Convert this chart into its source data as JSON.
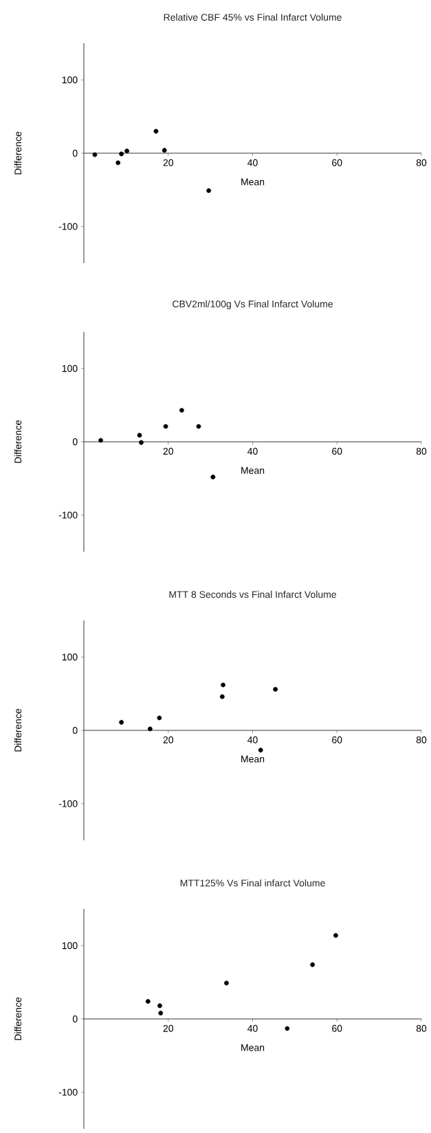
{
  "chart_data": [
    {
      "type": "scatter",
      "title": "Relative CBF 45% vs Final Infarct Volume",
      "xlabel": "Mean",
      "ylabel": "Difference",
      "color": "#000000",
      "marker": "circle",
      "xlim": [
        0,
        80
      ],
      "ylim": [
        -150,
        150
      ],
      "xticks": [
        20,
        40,
        60,
        80
      ],
      "yticks": [
        -100,
        0,
        100
      ],
      "x": [
        2.6,
        8.1,
        8.9,
        10.2,
        17.1,
        19.1,
        29.6
      ],
      "values": [
        -2,
        -13,
        -1,
        3,
        30,
        4,
        -51
      ]
    },
    {
      "type": "scatter",
      "title": "CBV2ml/100g Vs Final Infarct Volume",
      "xlabel": "Mean",
      "ylabel": "Difference",
      "color": "#000000",
      "marker": "circle",
      "xlim": [
        0,
        80
      ],
      "ylim": [
        -150,
        150
      ],
      "xticks": [
        20,
        40,
        60,
        80
      ],
      "yticks": [
        -100,
        0,
        100
      ],
      "x": [
        4.0,
        13.2,
        13.6,
        19.4,
        23.2,
        27.2,
        30.6
      ],
      "values": [
        2,
        9,
        -1,
        21,
        43,
        21,
        -48
      ]
    },
    {
      "type": "scatter",
      "title": "MTT 8 Seconds vs Final Infarct Volume",
      "xlabel": "Mean",
      "ylabel": "Difference",
      "color": "#000000",
      "marker": "circle",
      "xlim": [
        0,
        80
      ],
      "ylim": [
        -150,
        150
      ],
      "xticks": [
        20,
        40,
        60,
        80
      ],
      "yticks": [
        -100,
        0,
        100
      ],
      "x": [
        8.9,
        15.7,
        17.9,
        33.0,
        32.8,
        45.4,
        41.9
      ],
      "values": [
        11,
        2,
        17,
        62,
        46,
        56,
        -27
      ]
    },
    {
      "type": "scatter",
      "title": "MTT125% Vs Final infarct Volume",
      "xlabel": "Mean",
      "ylabel": "Difference",
      "color": "#000000",
      "marker": "circle",
      "xlim": [
        0,
        80
      ],
      "ylim": [
        -150,
        150
      ],
      "xticks": [
        20,
        40,
        60,
        80
      ],
      "yticks": [
        -100,
        0,
        100
      ],
      "x": [
        15.2,
        18.0,
        18.2,
        33.8,
        48.2,
        54.2,
        59.7
      ],
      "values": [
        24,
        18,
        8,
        49,
        -13,
        74,
        114
      ]
    }
  ]
}
